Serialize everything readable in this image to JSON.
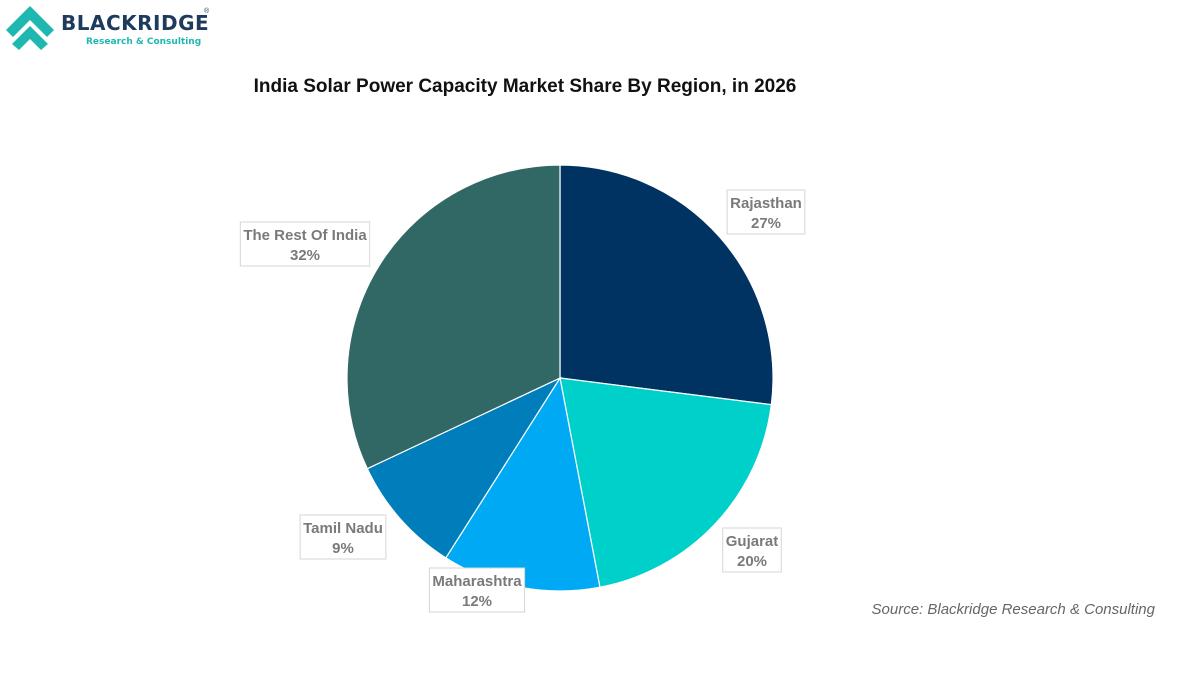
{
  "brand": {
    "name": "BLACKRIDGE",
    "registered": "®",
    "tagline": "Research & Consulting"
  },
  "source": "Source: Blackridge Research & Consulting",
  "chart_data": {
    "type": "pie",
    "title": "India Solar Power Capacity Market Share By Region, in 2026",
    "categories": [
      "Rajasthan",
      "Gujarat",
      "Maharashtra",
      "Tamil Nadu",
      "The Rest Of India"
    ],
    "values": [
      27,
      20,
      12,
      9,
      32
    ],
    "value_labels": [
      "27%",
      "20%",
      "12%",
      "9%",
      "32%"
    ],
    "unit": "%",
    "colors": [
      "#003361",
      "#00d0ca",
      "#00a9f4",
      "#007dbb",
      "#316865"
    ],
    "start": "12 o'clock",
    "direction": "clockwise",
    "legend": "none",
    "data_labels": "outside"
  }
}
